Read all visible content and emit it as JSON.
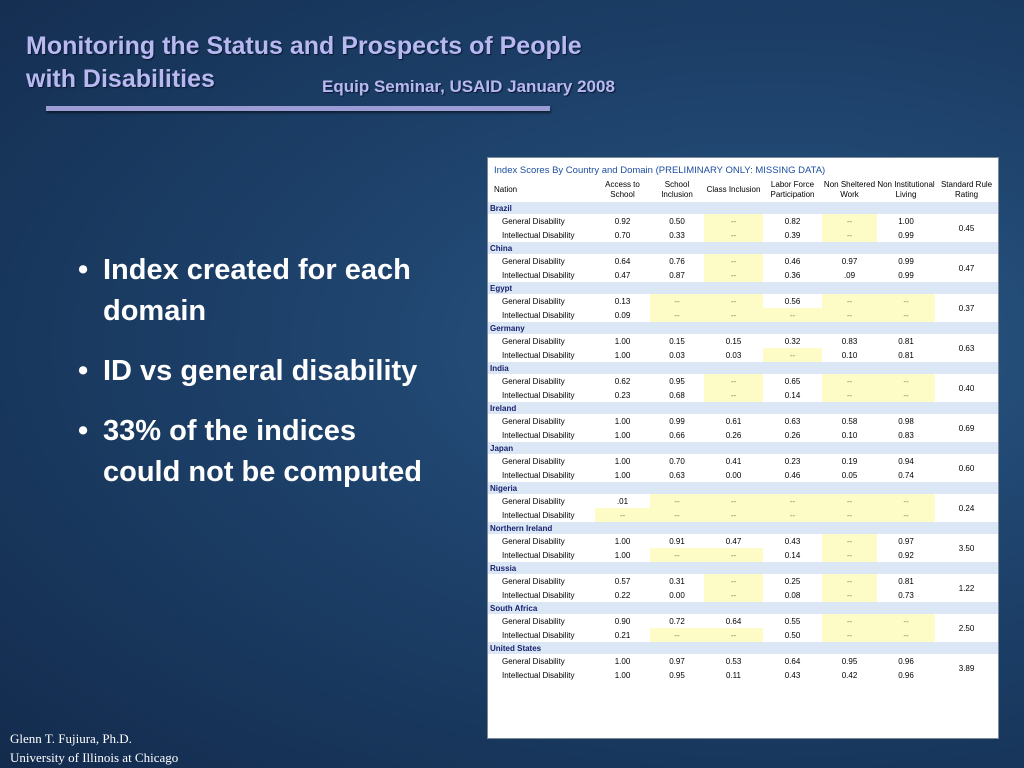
{
  "slide": {
    "title_line1": "Monitoring the Status and Prospects of People",
    "title_line2": "with Disabilities",
    "subtitle": "Equip Seminar, USAID January 2008",
    "bullets": [
      "Index created for each domain",
      "ID vs general disability",
      "33% of the indices could not be computed"
    ],
    "bullet_glyph": "•",
    "footer_name": "Glenn T. Fujiura, Ph.D.",
    "footer_affiliation": "University of Illinois at Chicago"
  },
  "colors": {
    "title": "#b9b9f2",
    "country_band": "#dce7f6",
    "country_name": "#16216e",
    "missing_cell": "#fdfcc6",
    "caption": "#1d4fa0"
  },
  "table": {
    "caption": "Index Scores By Country and Domain (PRELIMINARY ONLY: MISSING DATA)",
    "headers": [
      "Nation",
      "Access to School",
      "School Inclusion",
      "Class Inclusion",
      "Labor Force Participation",
      "Non Sheltered Work",
      "Non Institutional Living",
      "Standard Rule Rating"
    ],
    "missing_marker": "--",
    "countries": [
      {
        "name": "Brazil",
        "rule": "0.45",
        "rows": [
          {
            "label": "General Disability",
            "values": [
              "0.92",
              "0.50",
              "--",
              "0.82",
              "--",
              "1.00"
            ]
          },
          {
            "label": "Intellectual Disability",
            "values": [
              "0.70",
              "0.33",
              "--",
              "0.39",
              "--",
              "0.99"
            ]
          }
        ]
      },
      {
        "name": "China",
        "rule": "0.47",
        "rows": [
          {
            "label": "General Disability",
            "values": [
              "0.64",
              "0.76",
              "--",
              "0.46",
              "0.97",
              "0.99"
            ]
          },
          {
            "label": "Intellectual Disability",
            "values": [
              "0.47",
              "0.87",
              "--",
              "0.36",
              ".09",
              "0.99"
            ]
          }
        ]
      },
      {
        "name": "Egypt",
        "rule": "0.37",
        "rows": [
          {
            "label": "General Disability",
            "values": [
              "0.13",
              "--",
              "--",
              "0.56",
              "--",
              "--"
            ]
          },
          {
            "label": "Intellectual Disability",
            "values": [
              "0.09",
              "--",
              "--",
              "--",
              "--",
              "--"
            ]
          }
        ]
      },
      {
        "name": "Germany",
        "rule": "0.63",
        "rows": [
          {
            "label": "General Disability",
            "values": [
              "1.00",
              "0.15",
              "0.15",
              "0.32",
              "0.83",
              "0.81"
            ]
          },
          {
            "label": "Intellectual Disability",
            "values": [
              "1.00",
              "0.03",
              "0.03",
              "--",
              "0.10",
              "0.81"
            ]
          }
        ]
      },
      {
        "name": "India",
        "rule": "0.40",
        "rows": [
          {
            "label": "General Disability",
            "values": [
              "0.62",
              "0.95",
              "--",
              "0.65",
              "--",
              "--"
            ]
          },
          {
            "label": "Intellectual Disability",
            "values": [
              "0.23",
              "0.68",
              "--",
              "0.14",
              "--",
              "--"
            ]
          }
        ]
      },
      {
        "name": "Ireland",
        "rule": "0.69",
        "rows": [
          {
            "label": "General Disability",
            "values": [
              "1.00",
              "0.99",
              "0.61",
              "0.63",
              "0.58",
              "0.98"
            ]
          },
          {
            "label": "Intellectual Disability",
            "values": [
              "1.00",
              "0.66",
              "0.26",
              "0.26",
              "0.10",
              "0.83"
            ]
          }
        ]
      },
      {
        "name": "Japan",
        "rule": "0.60",
        "rows": [
          {
            "label": "General Disability",
            "values": [
              "1.00",
              "0.70",
              "0.41",
              "0.23",
              "0.19",
              "0.94"
            ]
          },
          {
            "label": "Intellectual Disability",
            "values": [
              "1.00",
              "0.63",
              "0.00",
              "0.46",
              "0.05",
              "0.74"
            ]
          }
        ]
      },
      {
        "name": "Nigeria",
        "rule": "0.24",
        "rows": [
          {
            "label": "General Disability",
            "values": [
              ".01",
              "--",
              "--",
              "--",
              "--",
              "--"
            ]
          },
          {
            "label": "Intellectual Disability",
            "values": [
              "--",
              "--",
              "--",
              "--",
              "--",
              "--"
            ]
          }
        ]
      },
      {
        "name": "Northern Ireland",
        "rule": "3.50",
        "rows": [
          {
            "label": "General Disability",
            "values": [
              "1.00",
              "0.91",
              "0.47",
              "0.43",
              "--",
              "0.97"
            ]
          },
          {
            "label": "Intellectual Disability",
            "values": [
              "1.00",
              "--",
              "--",
              "0.14",
              "--",
              "0.92"
            ]
          }
        ]
      },
      {
        "name": "Russia",
        "rule": "1.22",
        "rows": [
          {
            "label": "General Disability",
            "values": [
              "0.57",
              "0.31",
              "--",
              "0.25",
              "--",
              "0.81"
            ]
          },
          {
            "label": "Intellectual Disability",
            "values": [
              "0.22",
              "0.00",
              "--",
              "0.08",
              "--",
              "0.73"
            ]
          }
        ]
      },
      {
        "name": "South Africa",
        "rule": "2.50",
        "rows": [
          {
            "label": "General Disability",
            "values": [
              "0.90",
              "0.72",
              "0.64",
              "0.55",
              "--",
              "--"
            ]
          },
          {
            "label": "Intellectual Disability",
            "values": [
              "0.21",
              "--",
              "--",
              "0.50",
              "--",
              "--"
            ]
          }
        ]
      },
      {
        "name": "United States",
        "rule": "3.89",
        "rows": [
          {
            "label": "General Disability",
            "values": [
              "1.00",
              "0.97",
              "0.53",
              "0.64",
              "0.95",
              "0.96"
            ]
          },
          {
            "label": "Intellectual Disability",
            "values": [
              "1.00",
              "0.95",
              "0.11",
              "0.43",
              "0.42",
              "0.96"
            ]
          }
        ]
      }
    ]
  }
}
